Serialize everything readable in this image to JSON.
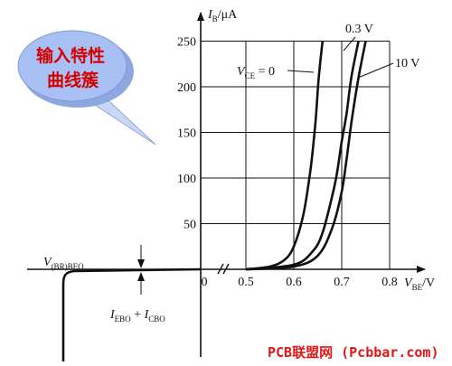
{
  "bubble": {
    "line1": "输入特性",
    "line2": "曲线簇"
  },
  "watermark": "PCB联盟网 (Pcbbar.com)",
  "colors": {
    "bubble_fill": "#9fb8f3",
    "bubble_text": "#d40000",
    "ink": "#111111",
    "watermark": "#e01818"
  },
  "chart_data": {
    "type": "line",
    "xlabel": {
      "main": "V",
      "sub": "BE",
      "unit": "/V"
    },
    "ylabel": {
      "main": "I",
      "sub": "B",
      "unit": "/μA"
    },
    "x_ticks": [
      "0",
      "0.5",
      "0.6",
      "0.7",
      "0.8"
    ],
    "y_ticks": [
      "50",
      "100",
      "150",
      "200",
      "250"
    ],
    "xlim": [
      0.45,
      0.8
    ],
    "ylim": [
      0,
      250
    ],
    "grid": true,
    "axis_break": "between 0 and 0.5 V",
    "series": [
      {
        "name": "V_CE=0",
        "label": {
          "main": "V",
          "sub": "CE",
          "rest": " = 0"
        },
        "x": [
          0.5,
          0.55,
          0.58,
          0.6,
          0.62,
          0.635,
          0.645,
          0.652,
          0.66
        ],
        "y": [
          0,
          3,
          10,
          25,
          60,
          110,
          160,
          210,
          250
        ]
      },
      {
        "name": "0.3 V",
        "label": {
          "main": "0.3 V"
        },
        "x": [
          0.5,
          0.6,
          0.64,
          0.66,
          0.68,
          0.69,
          0.7,
          0.71,
          0.72,
          0.735
        ],
        "y": [
          0,
          5,
          20,
          40,
          80,
          105,
          140,
          170,
          210,
          250
        ]
      },
      {
        "name": "10 V",
        "label": {
          "main": "10 V"
        },
        "x": [
          0.5,
          0.6,
          0.65,
          0.68,
          0.7,
          0.71,
          0.72,
          0.735,
          0.75
        ],
        "y": [
          0,
          3,
          15,
          45,
          85,
          120,
          160,
          210,
          250
        ]
      }
    ],
    "annotations": [
      {
        "id": "breakdown",
        "main": "V",
        "sub": "(BR)BEO"
      },
      {
        "id": "leakage",
        "part1_main": "I",
        "part1_sub": "EBO",
        "plus": " + ",
        "part2_main": "I",
        "part2_sub": "CBO"
      }
    ]
  }
}
